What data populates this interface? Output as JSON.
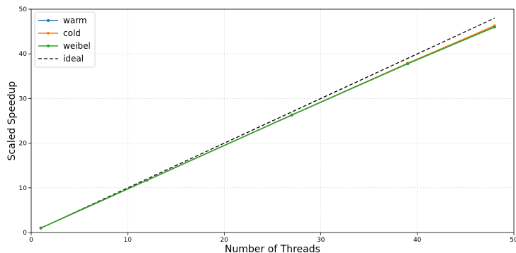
{
  "chart_data": {
    "type": "line",
    "title": "",
    "xlabel": "Number of Threads",
    "ylabel": "Scaled Speedup",
    "xlim": [
      0,
      50
    ],
    "ylim": [
      0,
      50
    ],
    "xticks": [
      0,
      10,
      20,
      30,
      40,
      50
    ],
    "yticks": [
      0,
      10,
      20,
      30,
      40,
      50
    ],
    "grid": true,
    "legend_position": "top-left",
    "series": [
      {
        "name": "warm",
        "color": "#1f77b4",
        "style": "solid-marker",
        "x": [
          1,
          12,
          27,
          39,
          48
        ],
        "y": [
          1.0,
          11.7,
          26.3,
          37.8,
          46.0
        ]
      },
      {
        "name": "cold",
        "color": "#ff7f0e",
        "style": "solid-marker",
        "x": [
          1,
          12,
          27,
          39,
          48
        ],
        "y": [
          1.0,
          11.7,
          26.3,
          37.9,
          46.3
        ]
      },
      {
        "name": "weibel",
        "color": "#2ca02c",
        "style": "solid-marker",
        "x": [
          1,
          12,
          27,
          39,
          48
        ],
        "y": [
          1.0,
          11.7,
          26.3,
          37.8,
          46.0
        ]
      },
      {
        "name": "ideal",
        "color": "#000000",
        "style": "dashed",
        "x": [
          1,
          48
        ],
        "y": [
          1,
          48
        ]
      }
    ]
  }
}
